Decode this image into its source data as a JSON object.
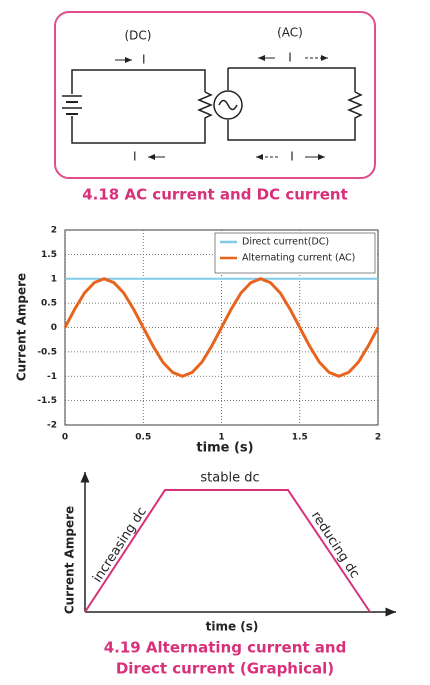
{
  "circuit_figure": {
    "dc_label": "(DC)",
    "ac_label": "(AC)",
    "current_labels": [
      "I",
      "I",
      "I",
      "I"
    ],
    "caption": "4.18   AC current and DC current"
  },
  "chart_data": {
    "type": "line",
    "x_label": "time (s)",
    "y_label": "Current Ampere",
    "x": [
      0,
      0.0625,
      0.125,
      0.1875,
      0.25,
      0.3125,
      0.375,
      0.4375,
      0.5,
      0.5625,
      0.625,
      0.6875,
      0.75,
      0.8125,
      0.875,
      0.9375,
      1,
      1.0625,
      1.125,
      1.1875,
      1.25,
      1.3125,
      1.375,
      1.4375,
      1.5,
      1.5625,
      1.625,
      1.6875,
      1.75,
      1.8125,
      1.875,
      1.9375,
      2
    ],
    "series": [
      {
        "name": "Direct current(DC)",
        "color": "#7fcbe8",
        "values": [
          1,
          1,
          1,
          1,
          1,
          1,
          1,
          1,
          1,
          1,
          1,
          1,
          1,
          1,
          1,
          1,
          1,
          1,
          1,
          1,
          1,
          1,
          1,
          1,
          1,
          1,
          1,
          1,
          1,
          1,
          1,
          1,
          1
        ]
      },
      {
        "name": "Alternating current (AC)",
        "color": "#e8641e",
        "values": [
          0,
          0.38,
          0.71,
          0.92,
          1,
          0.92,
          0.71,
          0.38,
          0,
          -0.38,
          -0.71,
          -0.92,
          -1,
          -0.92,
          -0.71,
          -0.38,
          0,
          0.38,
          0.71,
          0.92,
          1,
          0.92,
          0.71,
          0.38,
          0,
          -0.38,
          -0.71,
          -0.92,
          -1,
          -0.92,
          -0.71,
          -0.38,
          0
        ]
      }
    ],
    "xlim": [
      0,
      2
    ],
    "ylim": [
      -2,
      2
    ],
    "xticks": [
      0,
      0.5,
      1,
      1.5,
      2
    ],
    "yticks": [
      -2,
      -1.5,
      -1,
      -0.5,
      0,
      0.5,
      1,
      1.5,
      2
    ],
    "grid": true,
    "legend": "upper right"
  },
  "trapezoid_figure": {
    "y_label": "Current Ampere",
    "x_label": "time (s)",
    "segments": [
      "increasing dc",
      "stable dc",
      "reducing dc"
    ],
    "caption_lines": [
      "4.19 Alternating current and",
      "Direct current (Graphical)"
    ]
  }
}
